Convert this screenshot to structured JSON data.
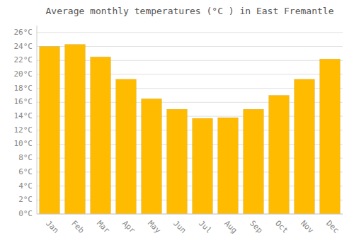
{
  "chart_data": {
    "type": "bar",
    "title": "Average monthly temperatures (°C ) in East Fremantle",
    "categories": [
      "Jan",
      "Feb",
      "Mar",
      "Apr",
      "May",
      "Jun",
      "Jul",
      "Aug",
      "Sep",
      "Oct",
      "Nov",
      "Dec"
    ],
    "values": [
      24.0,
      24.3,
      22.5,
      19.3,
      16.5,
      15.0,
      13.7,
      13.8,
      15.0,
      17.0,
      19.3,
      22.2
    ],
    "color": "#FFBB00",
    "ylim": [
      0,
      27
    ],
    "yticks": [
      {
        "value": 0,
        "label": "0°C"
      },
      {
        "value": 2,
        "label": "2°C"
      },
      {
        "value": 4,
        "label": "4°C"
      },
      {
        "value": 6,
        "label": "6°C"
      },
      {
        "value": 8,
        "label": "8°C"
      },
      {
        "value": 10,
        "label": "10°C"
      },
      {
        "value": 12,
        "label": "12°C"
      },
      {
        "value": 14,
        "label": "14°C"
      },
      {
        "value": 16,
        "label": "16°C"
      },
      {
        "value": 18,
        "label": "18°C"
      },
      {
        "value": 20,
        "label": "20°C"
      },
      {
        "value": 22,
        "label": "22°C"
      },
      {
        "value": 24,
        "label": "24°C"
      },
      {
        "value": 26,
        "label": "26°C"
      }
    ],
    "grid": true
  }
}
